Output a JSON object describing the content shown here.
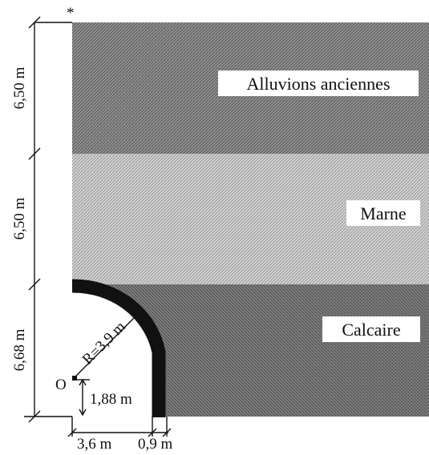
{
  "figure": {
    "star_marker": "*",
    "layers": [
      {
        "name": "Alluvions anciennes",
        "thickness_label": "6,50 m",
        "color": "#9a9a9a"
      },
      {
        "name": "Marne",
        "thickness_label": "6,50 m",
        "color": "#c4c4c4"
      },
      {
        "name": "Calcaire",
        "thickness_label": "6,68 m",
        "color": "#8a8a8a"
      }
    ],
    "tunnel": {
      "radius_label": "R=3,9 m",
      "origin_label": "O",
      "origin_height_label": "1,88 m",
      "width_label": "3,6 m",
      "lining_label": "0,9 m"
    }
  }
}
